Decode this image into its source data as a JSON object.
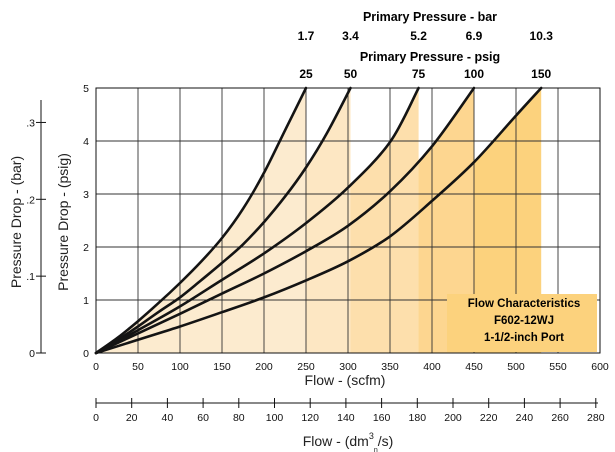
{
  "chart_data": {
    "type": "line",
    "title": "Flow Characteristics",
    "subtitle_lines": [
      "F602-12WJ",
      "1-1/2-inch Port"
    ],
    "xlabel": "Flow - (scfm)",
    "x2label_main": "Flow - (dm",
    "x2label_sup": "3",
    "x2label_sub": "n",
    "x2label_tail": "/s)",
    "ylabel": "Pressure Drop - (psig)",
    "y2label": "Pressure Drop - (bar)",
    "top_title_bar": "Primary Pressure - bar",
    "top_title_psig": "Primary Pressure - psig",
    "xlim": [
      0,
      600
    ],
    "ylim": [
      0,
      5
    ],
    "x_ticks": [
      "0",
      "50",
      "100",
      "150",
      "200",
      "250",
      "300",
      "350",
      "400",
      "450",
      "500",
      "550",
      "600"
    ],
    "y_ticks": [
      "0",
      "1",
      "2",
      "3",
      "4",
      "5"
    ],
    "x2_ticks": [
      "0",
      "20",
      "40",
      "60",
      "80",
      "100",
      "120",
      "140",
      "160",
      "180",
      "200",
      "220",
      "240",
      "260",
      "280"
    ],
    "y2_ticks": [
      "0",
      ".1",
      ".2",
      ".3"
    ],
    "y2_values": [
      0,
      1.45,
      2.9,
      4.35
    ],
    "fill_colors": [
      "#fcebcf",
      "#fde7c3",
      "#fddfac",
      "#fdd690",
      "#fcd27d"
    ],
    "series": [
      {
        "name": "25",
        "bar_label": "1.7",
        "x": [
          0,
          25,
          50,
          75,
          100,
          125,
          150,
          175,
          200,
          225,
          250
        ],
        "y": [
          0,
          0.28,
          0.6,
          0.95,
          1.32,
          1.72,
          2.17,
          2.72,
          3.4,
          4.2,
          5.0
        ]
      },
      {
        "name": "50",
        "bar_label": "3.4",
        "x": [
          0,
          25,
          50,
          75,
          100,
          125,
          150,
          175,
          200,
          225,
          250,
          275,
          303
        ],
        "y": [
          0,
          0.24,
          0.5,
          0.78,
          1.05,
          1.37,
          1.7,
          2.05,
          2.47,
          2.95,
          3.5,
          4.15,
          5.0
        ]
      },
      {
        "name": "75",
        "bar_label": "5.2",
        "x": [
          0,
          50,
          100,
          150,
          200,
          250,
          300,
          350,
          384
        ],
        "y": [
          0,
          0.43,
          0.88,
          1.38,
          1.88,
          2.45,
          3.12,
          3.98,
          5.0
        ]
      },
      {
        "name": "100",
        "bar_label": "6.9",
        "x": [
          0,
          50,
          100,
          150,
          200,
          250,
          300,
          350,
          400,
          450
        ],
        "y": [
          0,
          0.37,
          0.74,
          1.12,
          1.5,
          1.92,
          2.4,
          3.05,
          3.9,
          5.0
        ]
      },
      {
        "name": "150",
        "bar_label": "10.3",
        "x": [
          0,
          50,
          100,
          150,
          200,
          250,
          300,
          350,
          400,
          450,
          500,
          530
        ],
        "y": [
          0,
          0.25,
          0.5,
          0.77,
          1.05,
          1.37,
          1.73,
          2.2,
          2.87,
          3.6,
          4.48,
          5.0
        ]
      }
    ]
  }
}
